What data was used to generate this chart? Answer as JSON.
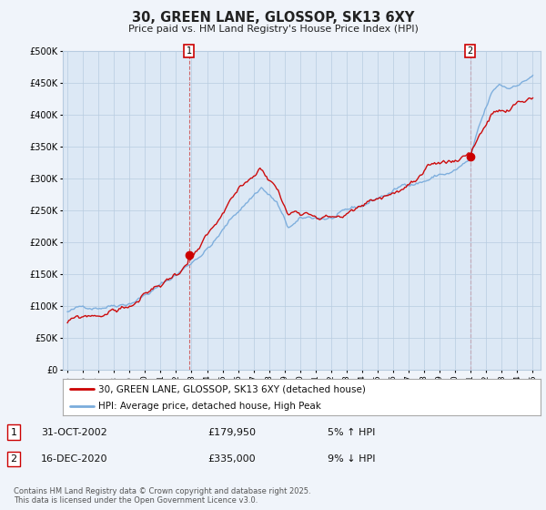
{
  "title": "30, GREEN LANE, GLOSSOP, SK13 6XY",
  "subtitle": "Price paid vs. HM Land Registry's House Price Index (HPI)",
  "ylim": [
    0,
    500000
  ],
  "yticks": [
    0,
    50000,
    100000,
    150000,
    200000,
    250000,
    300000,
    350000,
    400000,
    450000,
    500000
  ],
  "ytick_labels": [
    "£0",
    "£50K",
    "£100K",
    "£150K",
    "£200K",
    "£250K",
    "£300K",
    "£350K",
    "£400K",
    "£450K",
    "£500K"
  ],
  "xlim_start": 1994.7,
  "xlim_end": 2025.5,
  "xtick_years": [
    1995,
    1996,
    1997,
    1998,
    1999,
    2000,
    2001,
    2002,
    2003,
    2004,
    2005,
    2006,
    2007,
    2008,
    2009,
    2010,
    2011,
    2012,
    2013,
    2014,
    2015,
    2016,
    2017,
    2018,
    2019,
    2020,
    2021,
    2022,
    2023,
    2024,
    2025
  ],
  "house_color": "#cc0000",
  "hpi_color": "#7aacdc",
  "sale1_year": 2002.83,
  "sale1_price": 179950,
  "sale2_year": 2020.96,
  "sale2_price": 335000,
  "legend_house": "30, GREEN LANE, GLOSSOP, SK13 6XY (detached house)",
  "legend_hpi": "HPI: Average price, detached house, High Peak",
  "note1_date": "31-OCT-2002",
  "note1_price": "£179,950",
  "note1_hpi": "5% ↑ HPI",
  "note2_date": "16-DEC-2020",
  "note2_price": "£335,000",
  "note2_hpi": "9% ↓ HPI",
  "copyright": "Contains HM Land Registry data © Crown copyright and database right 2025.\nThis data is licensed under the Open Government Licence v3.0.",
  "background_color": "#f0f4fa",
  "plot_background": "#dce8f5",
  "grid_color": "#b8cce0",
  "ann_box_color": "#cc0000"
}
